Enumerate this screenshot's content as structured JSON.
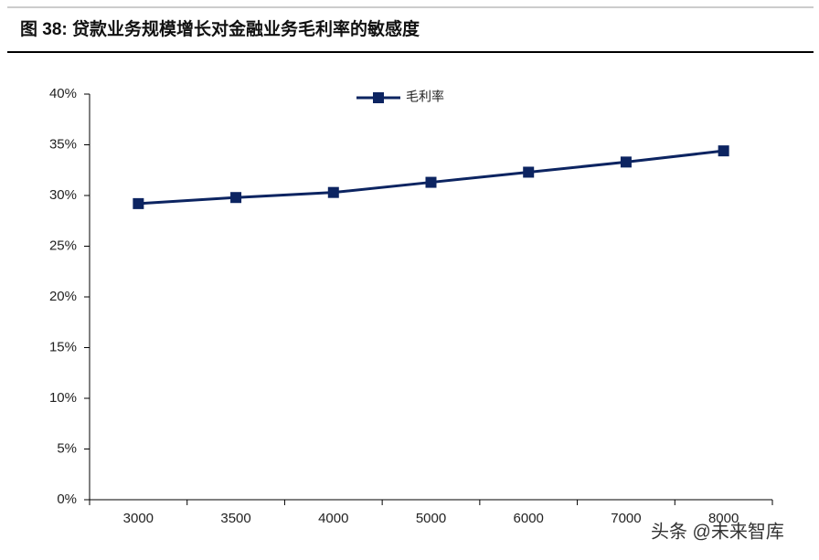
{
  "chart_data": {
    "type": "line",
    "title": "图 38:  贷款业务规模增长对金融业务毛利率的敏感度",
    "categories": [
      "3000",
      "3500",
      "4000",
      "5000",
      "6000",
      "7000",
      "8000"
    ],
    "series": [
      {
        "name": "毛利率",
        "color": "#0c2461",
        "values": [
          29.2,
          29.8,
          30.3,
          31.3,
          32.3,
          33.3,
          34.4
        ]
      }
    ],
    "ylim": [
      0,
      40
    ],
    "yticks": [
      {
        "value": 0,
        "label": "0%"
      },
      {
        "value": 5,
        "label": "5%"
      },
      {
        "value": 10,
        "label": "10%"
      },
      {
        "value": 15,
        "label": "15%"
      },
      {
        "value": 20,
        "label": "20%"
      },
      {
        "value": 25,
        "label": "25%"
      },
      {
        "value": 30,
        "label": "30%"
      },
      {
        "value": 35,
        "label": "35%"
      },
      {
        "value": 40,
        "label": "40%"
      }
    ],
    "grid": false,
    "legend": "top",
    "watermark": "头条 @未来智库"
  }
}
